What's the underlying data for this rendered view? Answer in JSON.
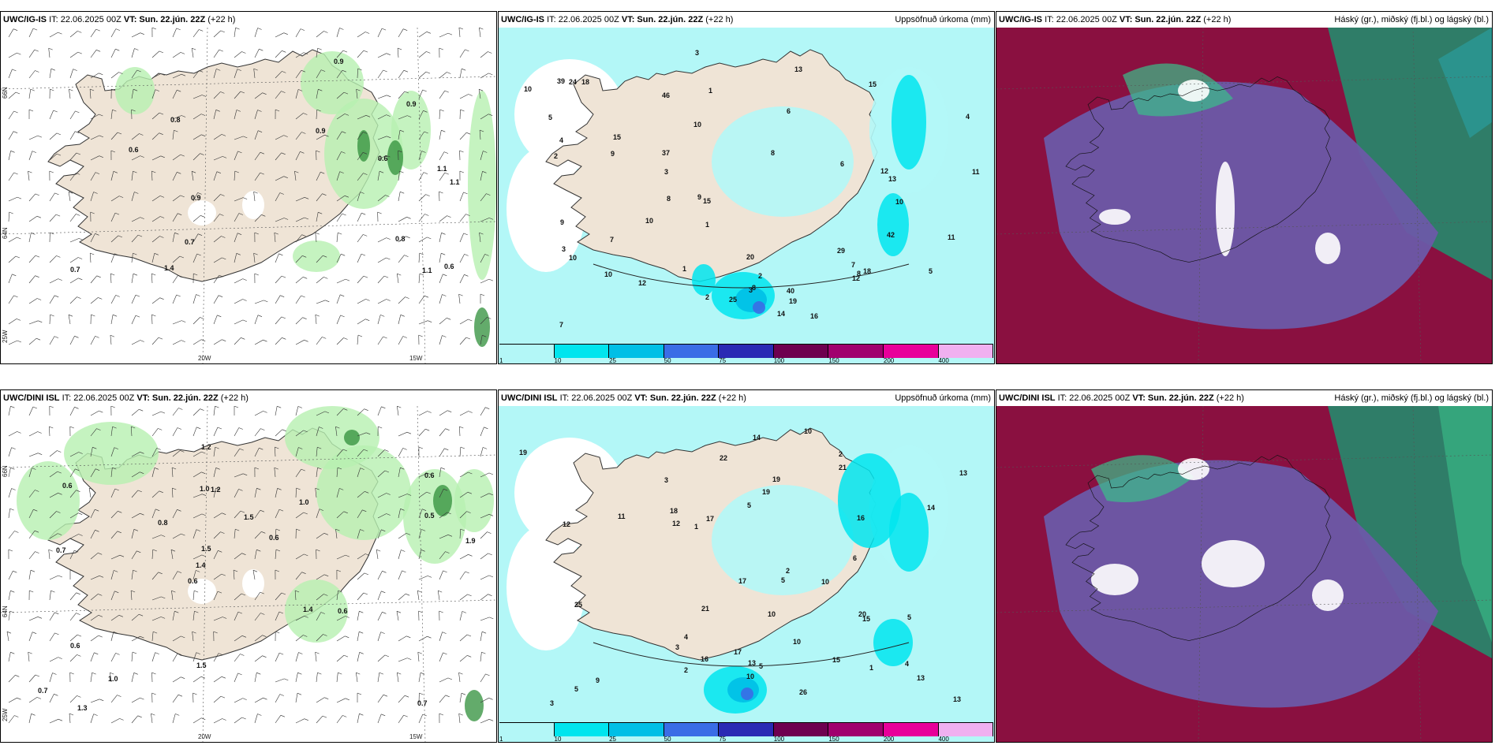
{
  "panels": [
    {
      "model": "UWC/IG-IS",
      "it": "IT: 22.06.2025 00Z",
      "vt_prefix": "VT:",
      "vt": "Sun. 22.jún. 22Z",
      "lead": "(+22 h)",
      "right": ""
    },
    {
      "model": "UWC/IG-IS",
      "it": "IT: 22.06.2025 00Z",
      "vt_prefix": "VT:",
      "vt": "Sun. 22.jún. 22Z",
      "lead": "(+22 h)",
      "right": "Uppsöfnuð úrkoma (mm)"
    },
    {
      "model": "UWC/IG-IS",
      "it": "IT: 22.06.2025 00Z",
      "vt_prefix": "VT:",
      "vt": "Sun. 22.jún. 22Z",
      "lead": "(+22 h)",
      "right": "Háský (gr.), miðský (fj.bl.) og lágský (bl.)"
    },
    {
      "model": "UWC/DINI ISL",
      "it": "IT: 22.06.2025 00Z",
      "vt_prefix": "VT:",
      "vt": "Sun. 22.jún. 22Z",
      "lead": "(+22 h)",
      "right": ""
    },
    {
      "model": "UWC/DINI ISL",
      "it": "IT: 22.06.2025 00Z",
      "vt_prefix": "VT:",
      "vt": "Sun. 22.jún. 22Z",
      "lead": "(+22 h)",
      "right": "Uppsöfnuð úrkoma (mm)"
    },
    {
      "model": "UWC/DINI ISL",
      "it": "IT: 22.06.2025 00Z",
      "vt_prefix": "VT:",
      "vt": "Sun. 22.jún. 22Z",
      "lead": "(+22 h)",
      "right": "Háský (gr.), miðský (fj.bl.) og lágský (bl.)"
    }
  ],
  "axis_labels": {
    "lon_20w": "20W",
    "lon_15w": "15W",
    "lat_66n": "66N",
    "lat_64n": "64N",
    "lon_25w": "25W"
  },
  "precip_scale": {
    "ticks": [
      "1",
      "10",
      "25",
      "50",
      "75",
      "100",
      "150",
      "200",
      "400"
    ],
    "colors": [
      "#b3f7f7",
      "#00e5ee",
      "#00bfe6",
      "#3a6de6",
      "#2a2ab4",
      "#6e0050",
      "#a0006e",
      "#e8009a",
      "#f0b0f0"
    ]
  },
  "wind_labels_top": [
    "0.8",
    "1.1",
    "0.9",
    "1.1",
    "0.9",
    "0.6",
    "0.7",
    "0.9",
    "1.1",
    "0.9",
    "0.6",
    "0.8",
    "0.6",
    "1.4",
    "0.7"
  ],
  "wind_labels_bottom": [
    "0.7",
    "0.7",
    "0.6",
    "0.6",
    "1.0",
    "1.3",
    "1.0",
    "1.5",
    "0.6",
    "0.8",
    "0.7",
    "1.0",
    "1.2",
    "0.6",
    "0.6",
    "0.6",
    "1.2",
    "1.9",
    "1.4",
    "0.5",
    "1.4",
    "1.5",
    "1.5"
  ],
  "precip_labels_top": [
    "2",
    "2",
    "8",
    "10",
    "11",
    "10",
    "8",
    "9",
    "12",
    "15",
    "7",
    "5",
    "25",
    "16",
    "15",
    "19",
    "7",
    "8",
    "11",
    "13",
    "18",
    "10",
    "9",
    "3",
    "40",
    "12",
    "13",
    "14",
    "46",
    "37",
    "39",
    "29",
    "42",
    "20",
    "12",
    "10",
    "24",
    "18",
    "15",
    "10",
    "7",
    "10",
    "8",
    "3",
    "2",
    "6",
    "4",
    "1",
    "3",
    "1",
    "3",
    "5",
    "9",
    "6",
    "4",
    "1"
  ],
  "precip_labels_bottom": [
    "5",
    "5",
    "2",
    "10",
    "22",
    "10",
    "4",
    "2",
    "1",
    "3",
    "13",
    "12",
    "16",
    "14",
    "15",
    "18",
    "20",
    "25",
    "17",
    "13",
    "19",
    "9",
    "10",
    "10",
    "15",
    "21",
    "17",
    "19",
    "14",
    "10",
    "13",
    "21",
    "19",
    "3",
    "5",
    "26",
    "13",
    "16",
    "12",
    "17",
    "11",
    "4",
    "3",
    "2",
    "6",
    "1",
    "5",
    "5"
  ],
  "colors": {
    "land": "#efe4d6",
    "sea_precip": "#b3f7f7",
    "light_green": "#b7f0b0",
    "mid_green": "#7fd97a",
    "dark_green": "#2f8f3a",
    "cloud_high": "#6b5aa8",
    "cloud_mid": "#8a1040",
    "cloud_low": "#2f7d68",
    "cloud_white": "#ffffff"
  }
}
